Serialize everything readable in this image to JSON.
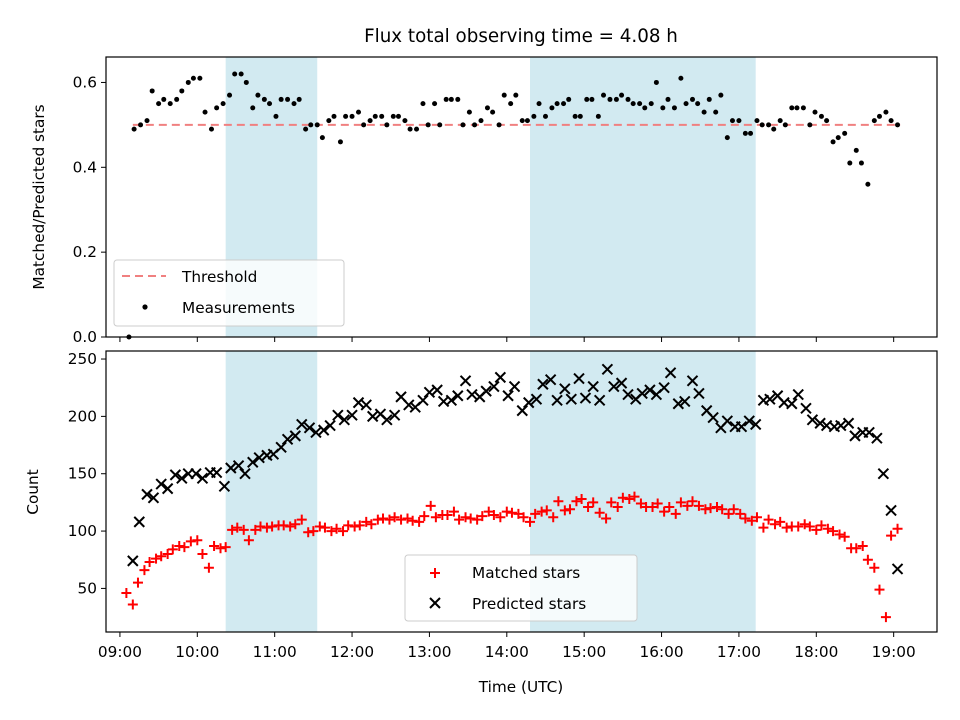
{
  "chart_data": [
    {
      "type": "scatter",
      "title": "Flux total observing time = 4.08 h",
      "xlabel": "",
      "ylabel": "Matched/Predicted stars",
      "ylim": [
        0,
        0.66
      ],
      "xlim_hours": [
        8.82,
        19.56
      ],
      "yticks": [
        0.0,
        0.2,
        0.4,
        0.6
      ],
      "ytick_labels": [
        "0.0",
        "0.2",
        "0.4",
        "0.6"
      ],
      "grid": false,
      "legend_position": "lower-left",
      "shaded_intervals": [
        [
          "10:22",
          "11:33"
        ],
        [
          "14:18",
          "17:13"
        ]
      ],
      "shade_color": "#add8e6",
      "threshold": {
        "name": "Threshold",
        "value": 0.5,
        "x_range": [
          "09:10",
          "19:05"
        ],
        "color": "#f08080"
      },
      "series": [
        {
          "name": "Measurements",
          "color": "#000000",
          "marker": "dot",
          "x": [
            "09:07",
            "09:11",
            "09:16",
            "09:21",
            "09:25",
            "09:30",
            "09:34",
            "09:39",
            "09:44",
            "09:48",
            "09:53",
            "09:57",
            "10:02",
            "10:06",
            "10:11",
            "10:15",
            "10:20",
            "10:25",
            "10:29",
            "10:34",
            "10:38",
            "10:43",
            "10:47",
            "10:52",
            "10:56",
            "11:01",
            "11:05",
            "11:10",
            "11:15",
            "11:19",
            "11:24",
            "11:28",
            "11:33",
            "11:37",
            "11:42",
            "11:46",
            "11:51",
            "11:55",
            "12:00",
            "12:05",
            "12:09",
            "12:14",
            "12:18",
            "12:23",
            "12:27",
            "12:32",
            "12:36",
            "12:41",
            "12:45",
            "12:50",
            "12:55",
            "12:59",
            "13:04",
            "13:08",
            "13:13",
            "13:17",
            "13:22",
            "13:26",
            "13:31",
            "13:35",
            "13:40",
            "13:45",
            "13:49",
            "13:54",
            "13:58",
            "14:03",
            "14:07",
            "14:12",
            "14:16",
            "14:21",
            "14:25",
            "14:30",
            "14:35",
            "14:39",
            "14:44",
            "14:48",
            "14:53",
            "14:57",
            "15:02",
            "15:06",
            "15:11",
            "15:15",
            "15:20",
            "15:25",
            "15:29",
            "15:34",
            "15:38",
            "15:43",
            "15:47",
            "15:52",
            "15:56",
            "16:01",
            "16:05",
            "16:10",
            "16:15",
            "16:19",
            "16:24",
            "16:28",
            "16:33",
            "16:37",
            "16:42",
            "16:46",
            "16:51",
            "16:55",
            "17:00",
            "17:05",
            "17:09",
            "17:14",
            "17:18",
            "17:23",
            "17:27",
            "17:32",
            "17:36",
            "17:41",
            "17:45",
            "17:50",
            "17:55",
            "17:59",
            "18:04",
            "18:08",
            "18:13",
            "18:17",
            "18:22",
            "18:26",
            "18:31",
            "18:35",
            "18:40",
            "18:45",
            "18:49",
            "18:54",
            "18:58",
            "19:03"
          ],
          "values": [
            0.0,
            0.49,
            0.5,
            0.51,
            0.58,
            0.55,
            0.56,
            0.55,
            0.56,
            0.58,
            0.6,
            0.61,
            0.61,
            0.53,
            0.49,
            0.54,
            0.55,
            0.57,
            0.62,
            0.62,
            0.6,
            0.54,
            0.57,
            0.56,
            0.55,
            0.52,
            0.56,
            0.56,
            0.55,
            0.56,
            0.49,
            0.5,
            0.5,
            0.47,
            0.51,
            0.52,
            0.46,
            0.52,
            0.52,
            0.53,
            0.5,
            0.51,
            0.52,
            0.52,
            0.5,
            0.52,
            0.52,
            0.51,
            0.49,
            0.49,
            0.55,
            0.5,
            0.55,
            0.5,
            0.56,
            0.56,
            0.56,
            0.5,
            0.53,
            0.5,
            0.51,
            0.54,
            0.53,
            0.5,
            0.57,
            0.55,
            0.57,
            0.51,
            0.51,
            0.52,
            0.55,
            0.52,
            0.54,
            0.55,
            0.55,
            0.56,
            0.52,
            0.52,
            0.56,
            0.56,
            0.52,
            0.57,
            0.56,
            0.56,
            0.57,
            0.56,
            0.55,
            0.55,
            0.54,
            0.55,
            0.6,
            0.54,
            0.56,
            0.54,
            0.61,
            0.55,
            0.56,
            0.55,
            0.53,
            0.56,
            0.53,
            0.57,
            0.47,
            0.51,
            0.51,
            0.48,
            0.48,
            0.51,
            0.5,
            0.5,
            0.49,
            0.51,
            0.5,
            0.54,
            0.54,
            0.54,
            0.5,
            0.53,
            0.52,
            0.51,
            0.46,
            0.47,
            0.48,
            0.41,
            0.44,
            0.41,
            0.36,
            0.51,
            0.52,
            0.53,
            0.51,
            0.5
          ]
        }
      ]
    },
    {
      "type": "scatter",
      "title": "",
      "xlabel": "Time (UTC)",
      "ylabel": "Count",
      "ylim": [
        12,
        257
      ],
      "xlim_hours": [
        8.82,
        19.56
      ],
      "xticks": [
        "09:00",
        "10:00",
        "11:00",
        "12:00",
        "13:00",
        "14:00",
        "15:00",
        "16:00",
        "17:00",
        "18:00",
        "19:00"
      ],
      "yticks": [
        50,
        100,
        150,
        200,
        250
      ],
      "ytick_labels": [
        "50",
        "100",
        "150",
        "200",
        "250"
      ],
      "grid": false,
      "legend_position": "lower-center",
      "shaded_intervals": [
        [
          "10:22",
          "11:33"
        ],
        [
          "14:18",
          "17:13"
        ]
      ],
      "shade_color": "#add8e6",
      "series": [
        {
          "name": "Matched stars",
          "color": "#ff0000",
          "marker": "plus",
          "x": [
            "09:05",
            "09:10",
            "09:14",
            "09:19",
            "09:23",
            "09:28",
            "09:32",
            "09:37",
            "09:41",
            "09:46",
            "09:50",
            "09:55",
            "10:00",
            "10:04",
            "10:09",
            "10:13",
            "10:18",
            "10:22",
            "10:27",
            "10:31",
            "10:36",
            "10:40",
            "10:45",
            "10:49",
            "10:54",
            "10:58",
            "11:03",
            "11:07",
            "11:12",
            "11:16",
            "11:21",
            "11:26",
            "11:30",
            "11:35",
            "11:39",
            "11:44",
            "11:48",
            "11:53",
            "11:57",
            "12:02",
            "12:06",
            "12:11",
            "12:15",
            "12:20",
            "12:24",
            "12:29",
            "12:33",
            "12:38",
            "12:43",
            "12:47",
            "12:52",
            "12:56",
            "13:01",
            "13:05",
            "13:10",
            "13:14",
            "13:19",
            "13:23",
            "13:28",
            "13:32",
            "13:37",
            "13:41",
            "13:46",
            "13:50",
            "13:55",
            "14:00",
            "14:04",
            "14:09",
            "14:13",
            "14:18",
            "14:22",
            "14:27",
            "14:31",
            "14:36",
            "14:40",
            "14:45",
            "14:49",
            "14:54",
            "14:58",
            "15:03",
            "15:07",
            "15:12",
            "15:17",
            "15:21",
            "15:26",
            "15:30",
            "15:35",
            "15:39",
            "15:44",
            "15:48",
            "15:53",
            "15:57",
            "16:02",
            "16:06",
            "16:11",
            "16:15",
            "16:20",
            "16:24",
            "16:29",
            "16:34",
            "16:38",
            "16:43",
            "16:47",
            "16:52",
            "16:56",
            "17:01",
            "17:05",
            "17:10",
            "17:14",
            "17:19",
            "17:23",
            "17:28",
            "17:32",
            "17:37",
            "17:41",
            "17:46",
            "17:51",
            "17:55",
            "18:00",
            "18:04",
            "18:09",
            "18:13",
            "18:18",
            "18:22",
            "18:27",
            "18:31",
            "18:36",
            "18:40",
            "18:45",
            "18:49",
            "18:54",
            "18:58",
            "19:03"
          ],
          "values": [
            46,
            36,
            55,
            66,
            73,
            76,
            78,
            80,
            84,
            87,
            86,
            91,
            92,
            80,
            68,
            87,
            85,
            86,
            101,
            103,
            101,
            92,
            101,
            104,
            103,
            104,
            105,
            105,
            104,
            106,
            110,
            99,
            100,
            104,
            103,
            100,
            102,
            100,
            105,
            104,
            105,
            108,
            106,
            110,
            111,
            110,
            112,
            110,
            111,
            109,
            108,
            113,
            122,
            112,
            114,
            114,
            117,
            110,
            112,
            111,
            110,
            113,
            117,
            114,
            112,
            117,
            116,
            115,
            112,
            108,
            115,
            117,
            118,
            112,
            126,
            118,
            119,
            126,
            128,
            121,
            125,
            116,
            111,
            125,
            121,
            129,
            128,
            130,
            124,
            121,
            121,
            124,
            117,
            121,
            115,
            125,
            122,
            126,
            122,
            119,
            120,
            121,
            119,
            115,
            119,
            115,
            111,
            109,
            112,
            103,
            110,
            106,
            108,
            103,
            104,
            104,
            106,
            104,
            101,
            105,
            102,
            100,
            97,
            95,
            85,
            85,
            87,
            75,
            68,
            49,
            25,
            96,
            102
          ]
        },
        {
          "name": "Predicted stars",
          "color": "#000000",
          "marker": "x",
          "x": [
            "09:10",
            "09:15",
            "09:21",
            "09:26",
            "09:32",
            "09:37",
            "09:43",
            "09:48",
            "09:53",
            "09:59",
            "10:04",
            "10:10",
            "10:15",
            "10:21",
            "10:26",
            "10:32",
            "10:37",
            "10:43",
            "10:48",
            "10:54",
            "10:59",
            "11:05",
            "11:10",
            "11:16",
            "11:21",
            "11:27",
            "11:32",
            "11:38",
            "11:43",
            "11:49",
            "11:54",
            "12:00",
            "12:05",
            "12:11",
            "12:16",
            "12:22",
            "12:27",
            "12:33",
            "12:38",
            "12:44",
            "12:49",
            "12:55",
            "13:00",
            "13:06",
            "13:11",
            "13:17",
            "13:22",
            "13:28",
            "13:33",
            "13:39",
            "13:44",
            "13:50",
            "13:55",
            "14:01",
            "14:06",
            "14:12",
            "14:17",
            "14:23",
            "14:28",
            "14:34",
            "14:39",
            "14:45",
            "14:50",
            "14:56",
            "15:01",
            "15:07",
            "15:12",
            "15:18",
            "15:23",
            "15:29",
            "15:34",
            "15:40",
            "15:45",
            "15:51",
            "15:56",
            "16:02",
            "16:07",
            "16:13",
            "16:18",
            "16:24",
            "16:29",
            "16:35",
            "16:40",
            "16:46",
            "16:51",
            "16:57",
            "17:02",
            "17:08",
            "17:13",
            "17:19",
            "17:24",
            "17:30",
            "17:35",
            "17:41",
            "17:46",
            "17:52",
            "17:57",
            "18:03",
            "18:08",
            "18:14",
            "18:19",
            "18:25",
            "18:30",
            "18:36",
            "18:41",
            "18:47",
            "18:52",
            "18:58",
            "19:03"
          ],
          "values": [
            74,
            108,
            132,
            129,
            141,
            137,
            149,
            146,
            150,
            150,
            146,
            151,
            151,
            139,
            155,
            157,
            150,
            160,
            164,
            166,
            167,
            173,
            180,
            183,
            193,
            190,
            186,
            188,
            192,
            201,
            197,
            201,
            212,
            210,
            200,
            202,
            197,
            201,
            217,
            210,
            208,
            214,
            221,
            223,
            213,
            214,
            218,
            231,
            219,
            217,
            222,
            226,
            234,
            218,
            226,
            205,
            212,
            215,
            228,
            232,
            214,
            224,
            215,
            233,
            216,
            226,
            214,
            241,
            226,
            229,
            219,
            215,
            220,
            223,
            219,
            225,
            238,
            211,
            213,
            231,
            220,
            205,
            199,
            190,
            196,
            191,
            191,
            196,
            193,
            214,
            215,
            218,
            212,
            211,
            219,
            207,
            197,
            194,
            192,
            191,
            192,
            194,
            183,
            186,
            186,
            181,
            150,
            118,
            67
          ]
        }
      ]
    }
  ]
}
